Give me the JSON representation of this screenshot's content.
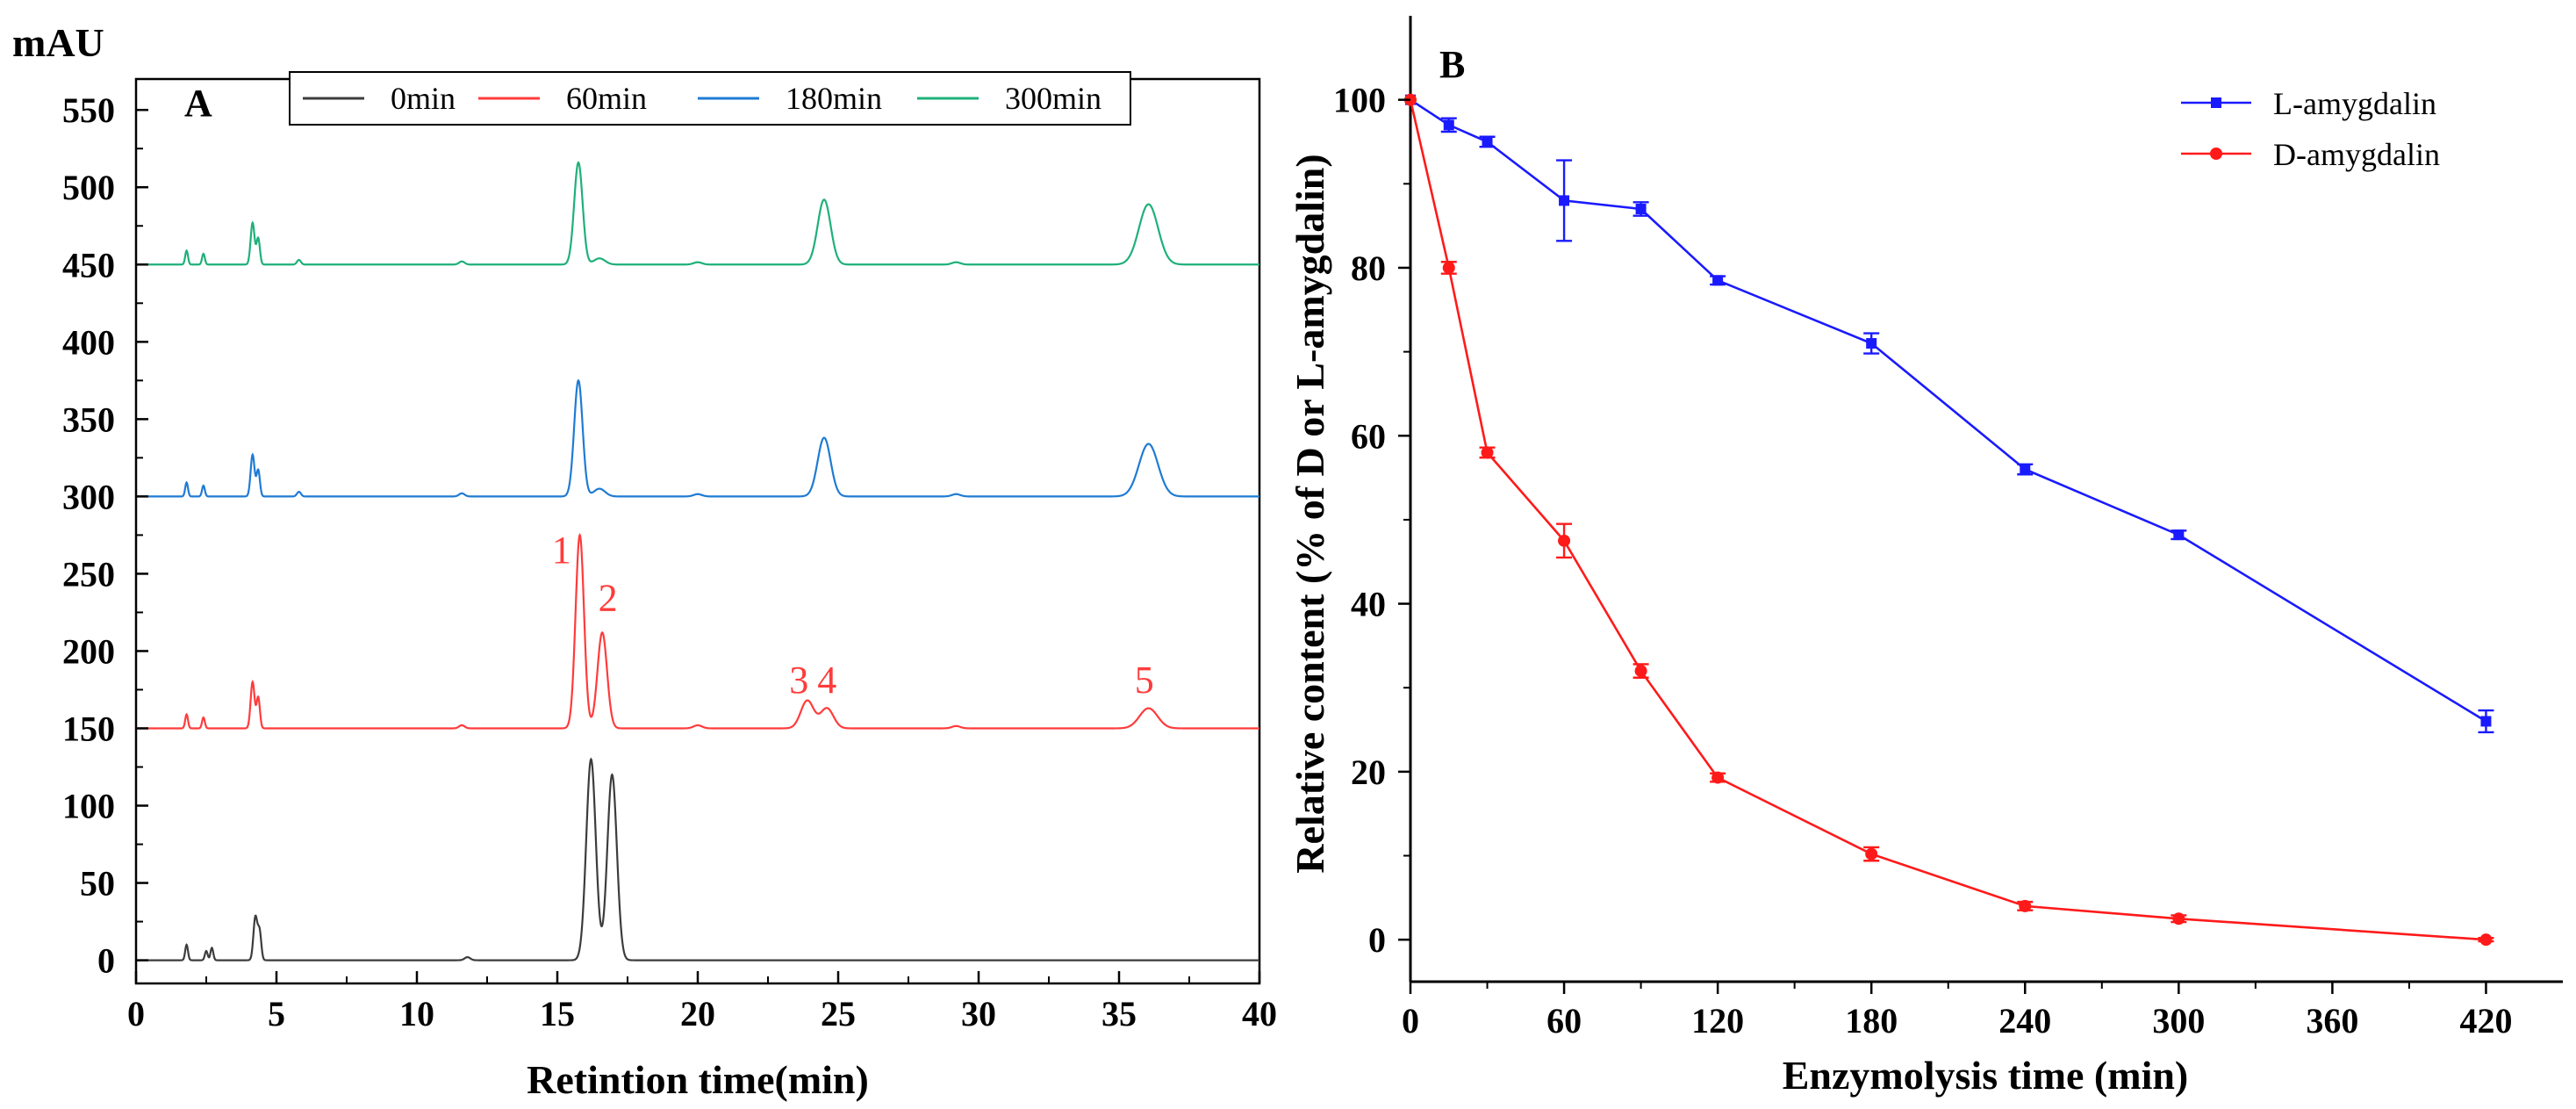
{
  "chart_data": [
    {
      "type": "line",
      "panel_label": "A",
      "title": "",
      "unit_label": "mAU",
      "xlabel": "Retintion time(min)",
      "ylabel": "",
      "xlim": [
        0,
        40
      ],
      "ylim": [
        -15,
        570
      ],
      "xticks": [
        0,
        5,
        10,
        15,
        20,
        25,
        30,
        35,
        40
      ],
      "xtick_labels": [
        "0",
        "5",
        "10",
        "15",
        "20",
        "25",
        "30",
        "35",
        "40"
      ],
      "yticks": [
        0,
        50,
        100,
        150,
        200,
        250,
        300,
        350,
        400,
        450,
        500,
        550
      ],
      "ytick_labels": [
        "0",
        "50",
        "100",
        "150",
        "200",
        "250",
        "300",
        "350",
        "400",
        "450",
        "500",
        "550"
      ],
      "grid": false,
      "legend_position": "top",
      "series": [
        {
          "name": "0min",
          "color": "#3c3c3c",
          "baseline": 0,
          "peaks": [
            {
              "t": 1.8,
              "h": 10,
              "w": 0.05
            },
            {
              "t": 2.5,
              "h": 6,
              "w": 0.05
            },
            {
              "t": 2.7,
              "h": 8,
              "w": 0.05
            },
            {
              "t": 4.25,
              "h": 28,
              "w": 0.07
            },
            {
              "t": 4.4,
              "h": 18,
              "w": 0.06
            },
            {
              "t": 11.8,
              "h": 2,
              "w": 0.1
            },
            {
              "t": 16.2,
              "h": 130,
              "w": 0.17
            },
            {
              "t": 16.95,
              "h": 120,
              "w": 0.17
            }
          ]
        },
        {
          "name": "60min",
          "color": "#ff3b3b",
          "baseline": 150,
          "peaks": [
            {
              "t": 1.8,
              "h": 9,
              "w": 0.05
            },
            {
              "t": 2.4,
              "h": 7,
              "w": 0.05
            },
            {
              "t": 4.15,
              "h": 30,
              "w": 0.07
            },
            {
              "t": 4.35,
              "h": 20,
              "w": 0.06
            },
            {
              "t": 11.6,
              "h": 2,
              "w": 0.1
            },
            {
              "t": 15.8,
              "h": 125,
              "w": 0.15
            },
            {
              "t": 16.6,
              "h": 62,
              "w": 0.17
            },
            {
              "t": 20,
              "h": 2,
              "w": 0.15
            },
            {
              "t": 23.9,
              "h": 18,
              "w": 0.23
            },
            {
              "t": 24.6,
              "h": 13,
              "w": 0.23
            },
            {
              "t": 29.2,
              "h": 1.5,
              "w": 0.15
            },
            {
              "t": 36.05,
              "h": 13,
              "w": 0.32
            }
          ],
          "peak_numbers": [
            {
              "text": "1",
              "t": 15.15,
              "y": 257
            },
            {
              "text": "2",
              "t": 16.8,
              "y": 226
            },
            {
              "text": "3",
              "t": 23.6,
              "y": 173
            },
            {
              "text": "4",
              "t": 24.6,
              "y": 173
            },
            {
              "text": "5",
              "t": 35.9,
              "y": 173
            }
          ]
        },
        {
          "name": "180min",
          "color": "#1f7bd4",
          "baseline": 300,
          "peaks": [
            {
              "t": 1.8,
              "h": 9,
              "w": 0.05
            },
            {
              "t": 2.4,
              "h": 7,
              "w": 0.05
            },
            {
              "t": 4.15,
              "h": 27,
              "w": 0.07
            },
            {
              "t": 4.35,
              "h": 17,
              "w": 0.06
            },
            {
              "t": 5.8,
              "h": 3,
              "w": 0.07
            },
            {
              "t": 11.6,
              "h": 2,
              "w": 0.1
            },
            {
              "t": 15.75,
              "h": 75,
              "w": 0.15
            },
            {
              "t": 16.5,
              "h": 5,
              "w": 0.2
            },
            {
              "t": 20,
              "h": 1.5,
              "w": 0.15
            },
            {
              "t": 24.5,
              "h": 38,
              "w": 0.23
            },
            {
              "t": 29.2,
              "h": 1.5,
              "w": 0.15
            },
            {
              "t": 36.05,
              "h": 34,
              "w": 0.34
            }
          ]
        },
        {
          "name": "300min",
          "color": "#1fb07a",
          "baseline": 450,
          "peaks": [
            {
              "t": 1.8,
              "h": 9,
              "w": 0.05
            },
            {
              "t": 2.4,
              "h": 7,
              "w": 0.05
            },
            {
              "t": 4.15,
              "h": 27,
              "w": 0.07
            },
            {
              "t": 4.35,
              "h": 17,
              "w": 0.06
            },
            {
              "t": 5.8,
              "h": 3,
              "w": 0.07
            },
            {
              "t": 11.6,
              "h": 2,
              "w": 0.1
            },
            {
              "t": 15.75,
              "h": 66,
              "w": 0.15
            },
            {
              "t": 16.5,
              "h": 4,
              "w": 0.2
            },
            {
              "t": 20,
              "h": 1.5,
              "w": 0.15
            },
            {
              "t": 24.5,
              "h": 42,
              "w": 0.23
            },
            {
              "t": 29.2,
              "h": 1.5,
              "w": 0.15
            },
            {
              "t": 36.05,
              "h": 39,
              "w": 0.34
            }
          ]
        }
      ]
    },
    {
      "type": "line",
      "panel_label": "B",
      "title": "",
      "xlabel": "Enzymolysis time (min)",
      "ylabel": "Relative content (% of D or L-amygdalin)",
      "xlim": [
        0,
        450
      ],
      "ylim": [
        -5,
        110
      ],
      "xticks": [
        0,
        60,
        120,
        180,
        240,
        300,
        360,
        420
      ],
      "xtick_labels": [
        "0",
        "60",
        "120",
        "180",
        "240",
        "300",
        "360",
        "420"
      ],
      "yticks": [
        0,
        20,
        40,
        60,
        80,
        100
      ],
      "ytick_labels": [
        "0",
        "20",
        "40",
        "60",
        "80",
        "100"
      ],
      "grid": false,
      "legend_position": "top-right",
      "series": [
        {
          "name": "L-amygdalin",
          "color": "#1a1aff",
          "marker": "square",
          "x": [
            0,
            15,
            30,
            60,
            90,
            120,
            180,
            240,
            300,
            420
          ],
          "y": [
            100,
            97,
            95,
            88,
            87,
            78.5,
            71,
            56,
            48.2,
            26
          ],
          "err": [
            0,
            0.8,
            0.6,
            4.8,
            0.8,
            0.5,
            1.2,
            0.6,
            0.5,
            1.3
          ]
        },
        {
          "name": "D-amygdalin",
          "color": "#ff1a1a",
          "marker": "circle",
          "x": [
            0,
            15,
            30,
            60,
            90,
            120,
            180,
            240,
            300,
            420
          ],
          "y": [
            100,
            80,
            58,
            47.5,
            32,
            19.3,
            10.2,
            4,
            2.5,
            0
          ],
          "err": [
            0,
            0.7,
            0.6,
            2,
            0.8,
            0.5,
            0.8,
            0.5,
            0.4,
            0.2
          ]
        }
      ]
    }
  ]
}
